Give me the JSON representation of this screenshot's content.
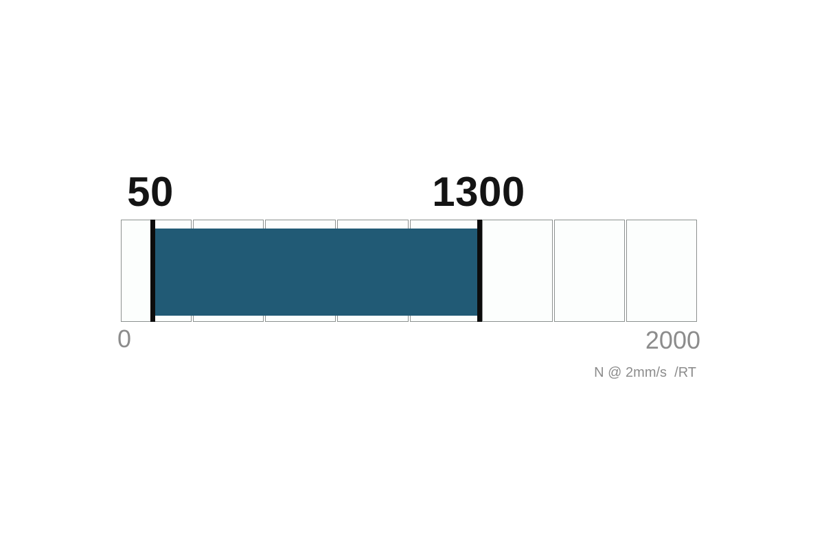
{
  "chart_data": {
    "type": "bar",
    "variant": "horizontal-range-gauge",
    "title": "",
    "axis": {
      "min": 0,
      "max": 2000,
      "min_label": "0",
      "max_label": "2000"
    },
    "range": {
      "start": 50,
      "end": 1300,
      "start_label": "50",
      "end_label": "1300"
    },
    "segment_count": 8,
    "segment_value_each": 250,
    "unit_label": "N @ 2mm/s  /RT",
    "layout": {
      "orientation": "horizontal",
      "grid": "segmented-cells",
      "legend": "none"
    },
    "colors": {
      "fill": "#215a75",
      "marker": "#0c0c0c",
      "cell_background": "#fcfefd",
      "cell_border": "#8b908e",
      "axis_text": "#8c8c8c",
      "value_text": "#141414"
    }
  }
}
